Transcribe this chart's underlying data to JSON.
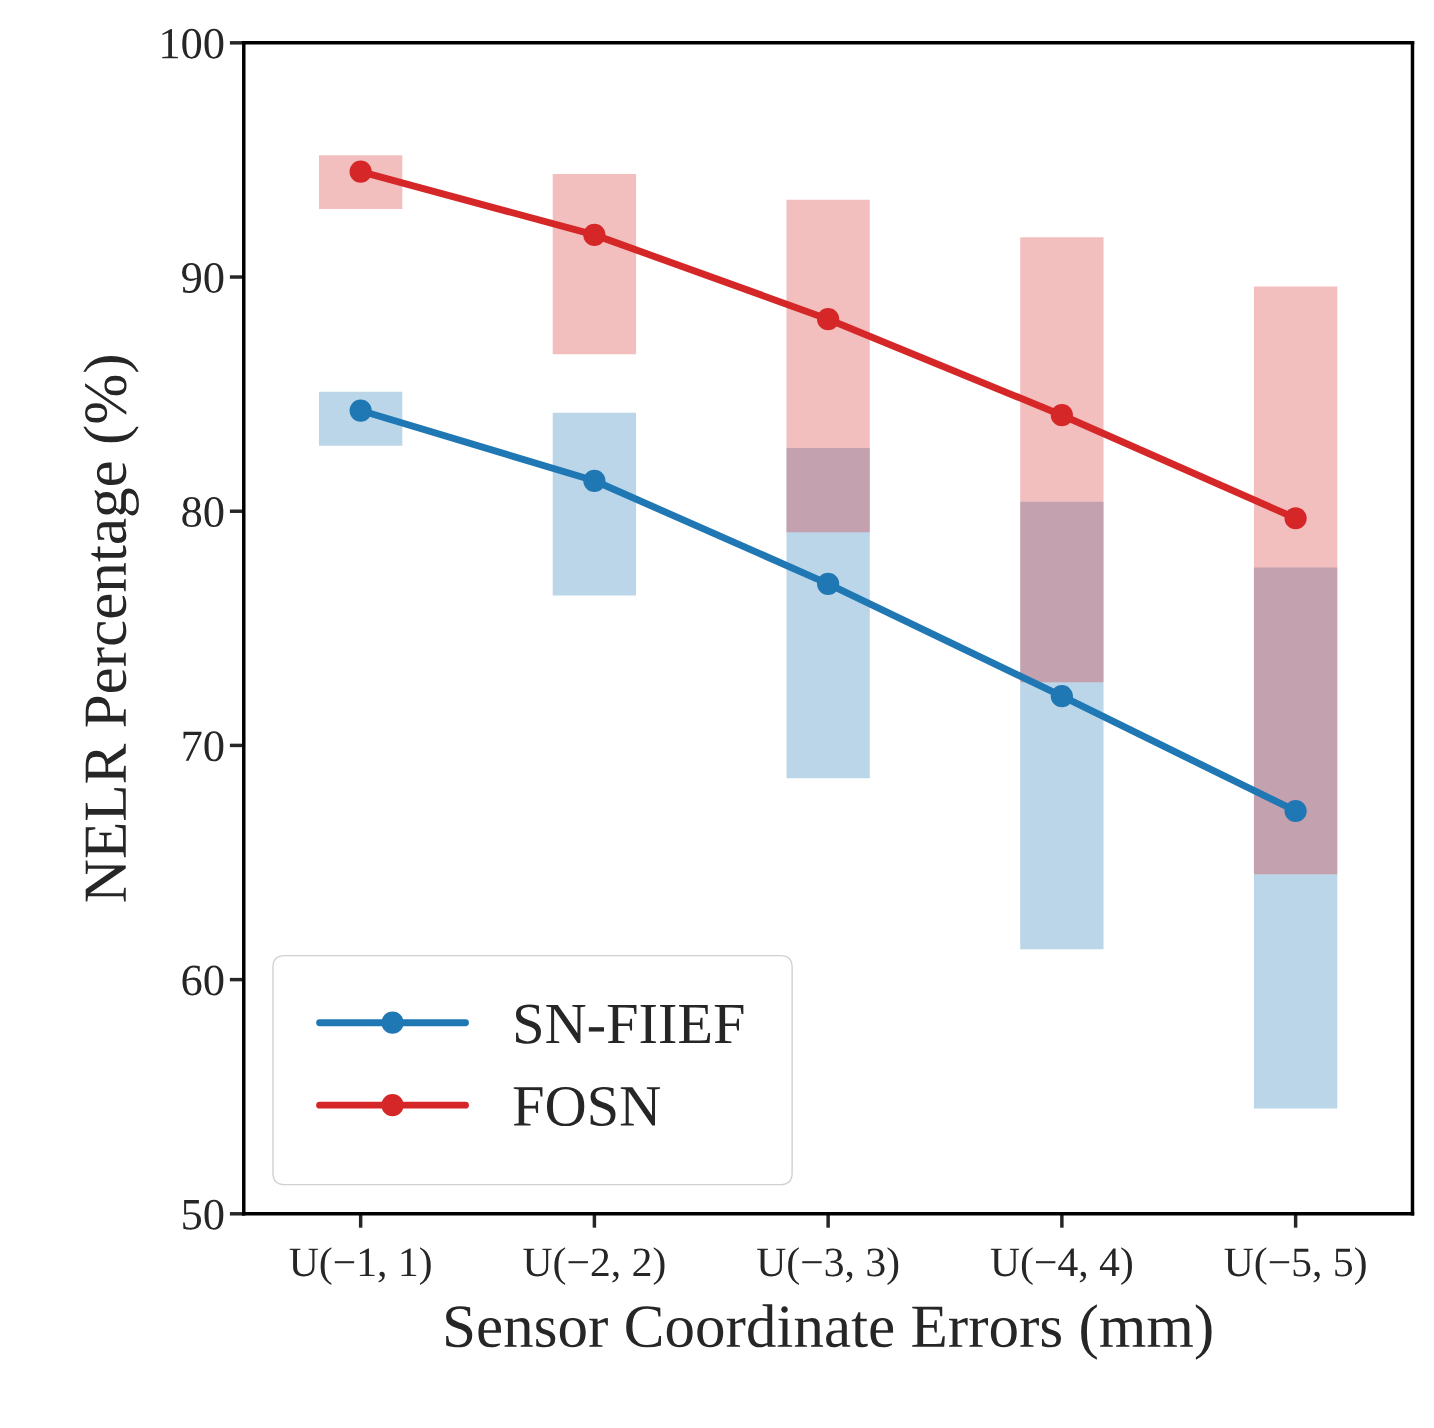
{
  "chart_data": {
    "type": "line",
    "xlabel": "Sensor Coordinate Errors (mm)",
    "ylabel": "NELR Percentage (%)",
    "categories": [
      "U(−1, 1)",
      "U(−2, 2)",
      "U(−3, 3)",
      "U(−4, 4)",
      "U(−5, 5)"
    ],
    "series": [
      {
        "name": "SN-FIIEF",
        "color": "#1f77b4",
        "values": [
          84.3,
          81.3,
          76.9,
          72.1,
          67.2
        ],
        "errors": [
          [
            82.8,
            85.1
          ],
          [
            76.4,
            84.2
          ],
          [
            68.6,
            82.7
          ],
          [
            61.3,
            80.4
          ],
          [
            54.5,
            77.6
          ]
        ]
      },
      {
        "name": "FOSN",
        "color": "#d62728",
        "values": [
          94.5,
          91.8,
          88.2,
          84.1,
          79.7
        ],
        "errors": [
          [
            92.9,
            95.2
          ],
          [
            86.7,
            94.4
          ],
          [
            79.1,
            93.3
          ],
          [
            72.7,
            91.7
          ],
          [
            64.5,
            89.6
          ]
        ]
      }
    ],
    "ylim": [
      50,
      100
    ],
    "yticks": [
      50,
      60,
      70,
      80,
      90,
      100
    ],
    "grid": false,
    "legend": "bottom left",
    "marker": "circle",
    "line_style": "solid"
  }
}
